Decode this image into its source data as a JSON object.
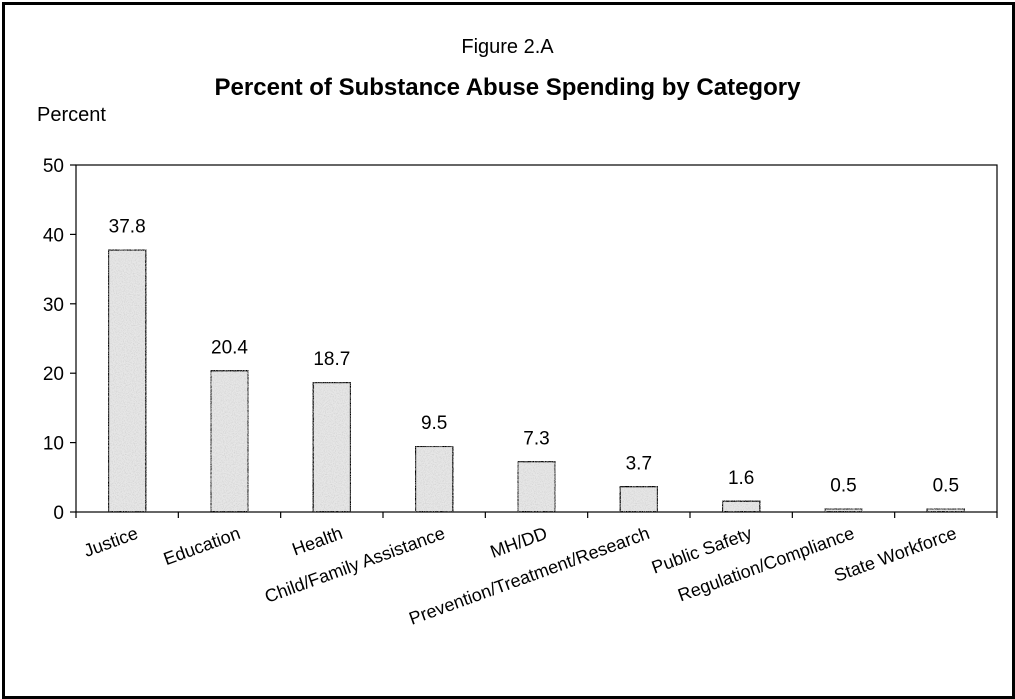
{
  "chart_data": {
    "type": "bar",
    "figure_label": "Figure 2.A",
    "title": "Percent of Substance Abuse Spending by Category",
    "ylabel": "Percent",
    "xlabel": "",
    "ylim": [
      0,
      50
    ],
    "yticks": [
      0,
      10,
      20,
      30,
      40,
      50
    ],
    "categories": [
      "Justice",
      "Education",
      "Health",
      "Child/Family Assistance",
      "MH/DD",
      "Prevention/Treatment/Research",
      "Public Safety",
      "Regulation/Compliance",
      "State Workforce"
    ],
    "values": [
      37.8,
      20.4,
      18.7,
      9.5,
      7.3,
      3.7,
      1.6,
      0.5,
      0.5
    ],
    "data_labels": [
      "37.8",
      "20.4",
      "18.7",
      "9.5",
      "7.3",
      "3.7",
      "1.6",
      "0.5",
      "0.5"
    ],
    "grid": false,
    "legend": "none",
    "bar_fill": "#e6e6e6",
    "bar_stroke": "#000000"
  }
}
